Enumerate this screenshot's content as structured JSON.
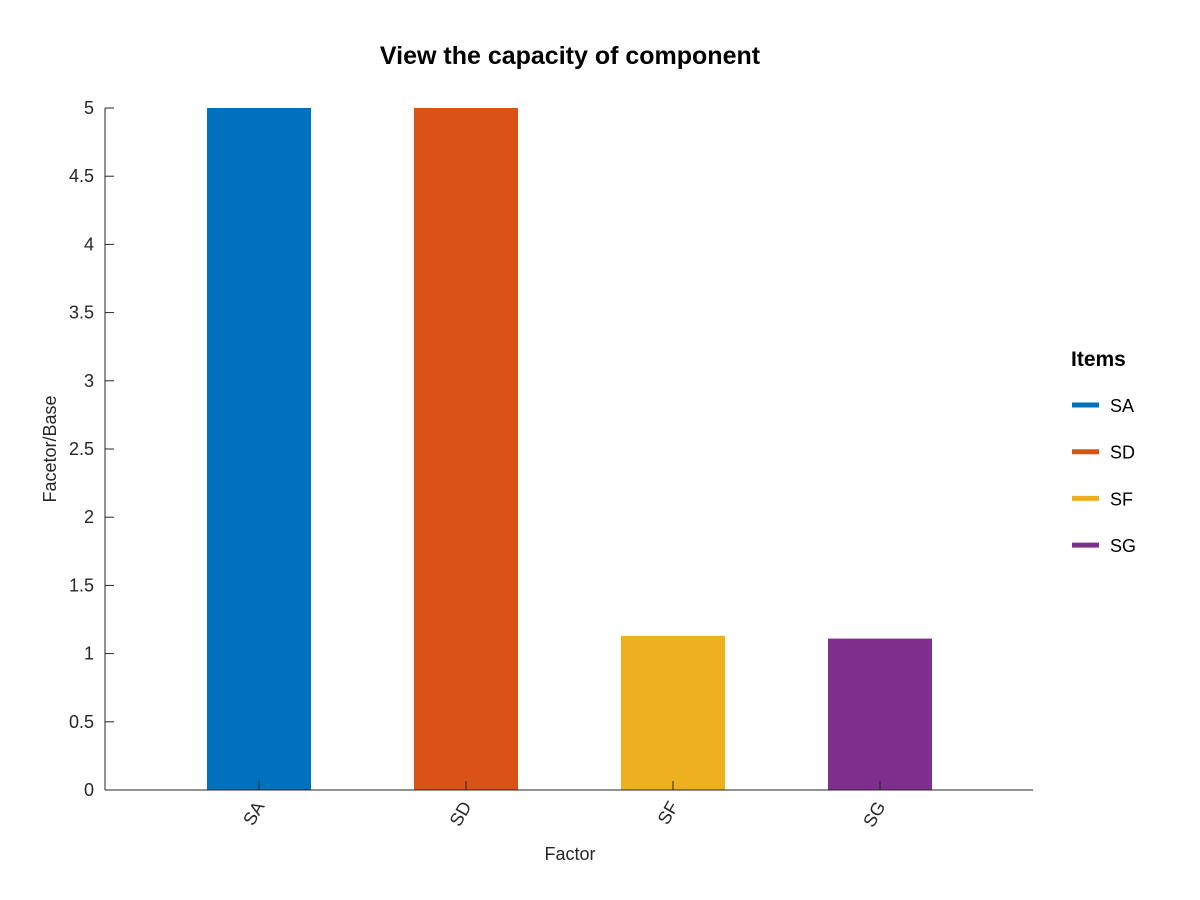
{
  "chart_data": {
    "type": "bar",
    "title": "View the capacity of component",
    "xlabel": "Factor",
    "ylabel": "Facetor/Base",
    "categories": [
      "SA",
      "SD",
      "SF",
      "SG"
    ],
    "values": [
      5,
      5,
      1.13,
      1.11
    ],
    "colors": [
      "#0072BD",
      "#D95319",
      "#EDB120",
      "#7E2F8E"
    ],
    "ylim": [
      0,
      5
    ],
    "yticks": [
      0,
      0.5,
      1,
      1.5,
      2,
      2.5,
      3,
      3.5,
      4,
      4.5,
      5
    ],
    "ytick_labels": [
      "0",
      "0.5",
      "1",
      "1.5",
      "2",
      "2.5",
      "3",
      "3.5",
      "4",
      "4.5",
      "5"
    ],
    "grid": false,
    "legend": {
      "title": "Items",
      "placement": "right",
      "entries": [
        "SA",
        "SD",
        "SF",
        "SG"
      ]
    }
  }
}
